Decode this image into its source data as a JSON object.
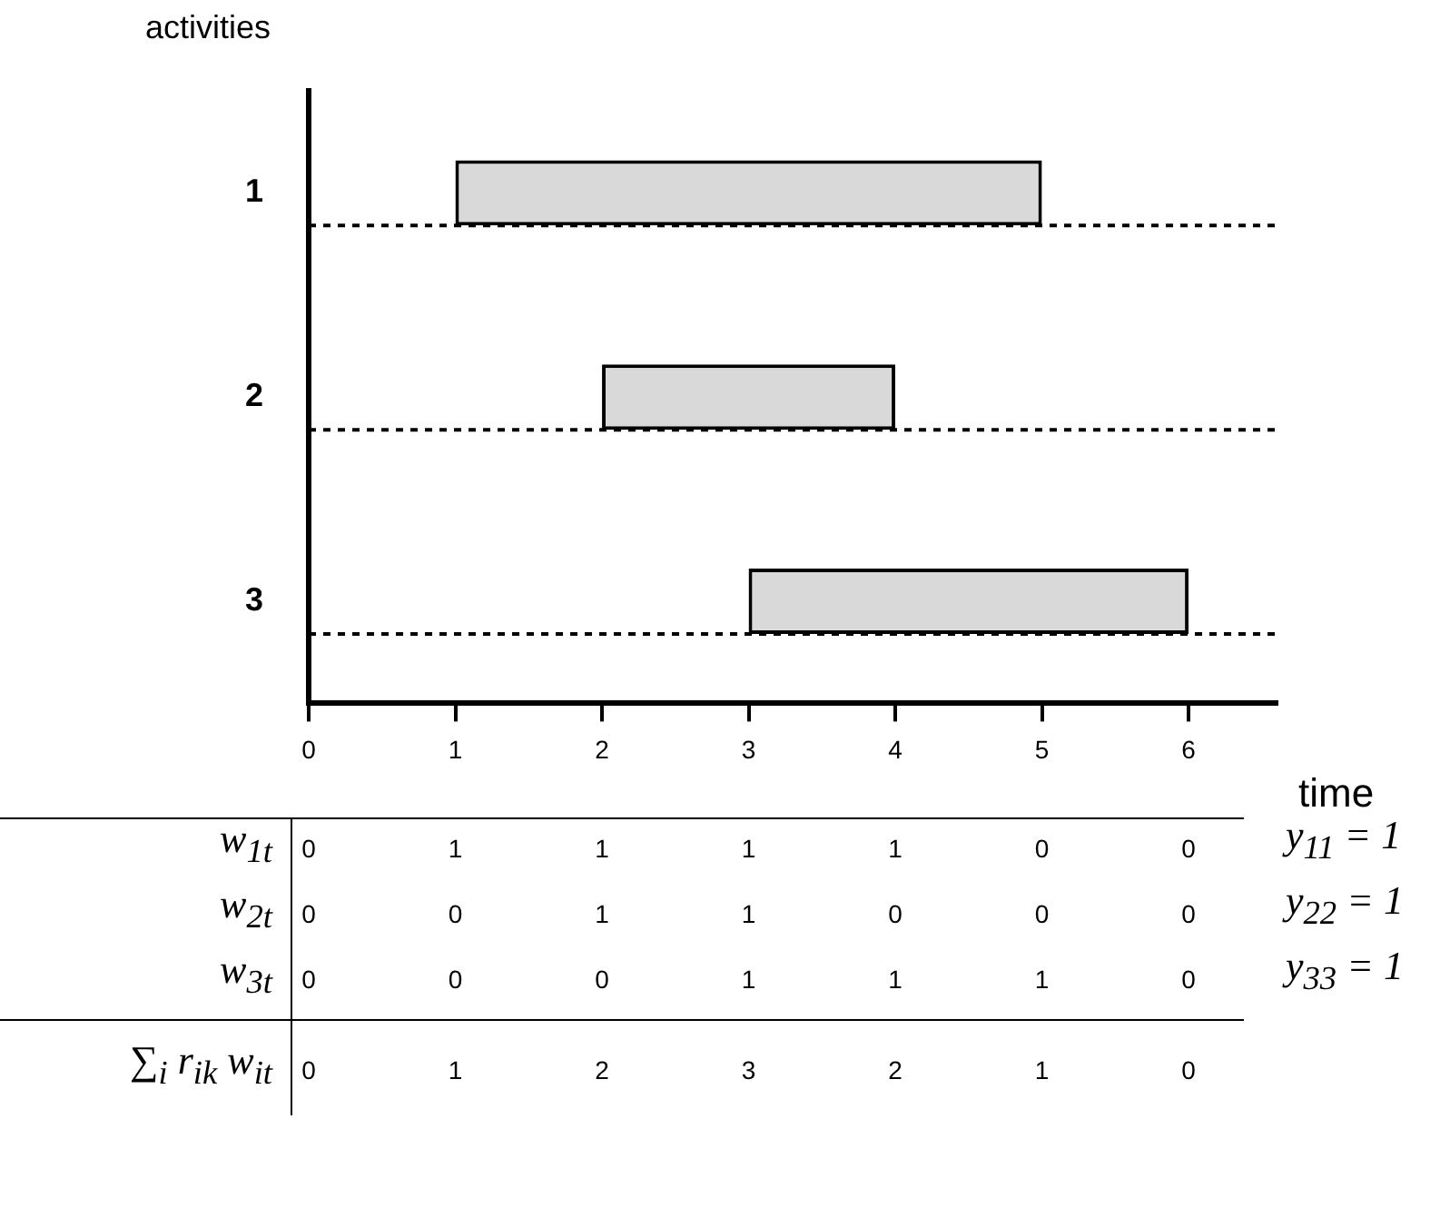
{
  "chart_data": {
    "type": "bar",
    "orientation": "horizontal",
    "ylabel": "activities",
    "xlabel": "time",
    "categories": [
      "1",
      "2",
      "3"
    ],
    "base": [
      1,
      2,
      3
    ],
    "values": [
      4,
      2,
      3
    ],
    "color": "#d9d9d9",
    "xlim": [
      0,
      6.6
    ],
    "xticks": [
      0,
      1,
      2,
      3,
      4,
      5,
      6
    ],
    "grid": "y",
    "line_style": "dashed",
    "legend": false,
    "annotations": [
      "w$_{1t}$ 0 1 1 1 1 0 0",
      "w$_{2t}$ 0 0 1 1 0 0 0",
      "w$_{3t}$ 0 0 0 1 1 1 0",
      "∑$_{i}$ r$_{ik}$ w$_{it}$ 0 1 2 3 2 1 0",
      "y$_{11}$ = 1",
      "y$_{22}$ = 1",
      "y$_{33}$ = 1"
    ]
  }
}
